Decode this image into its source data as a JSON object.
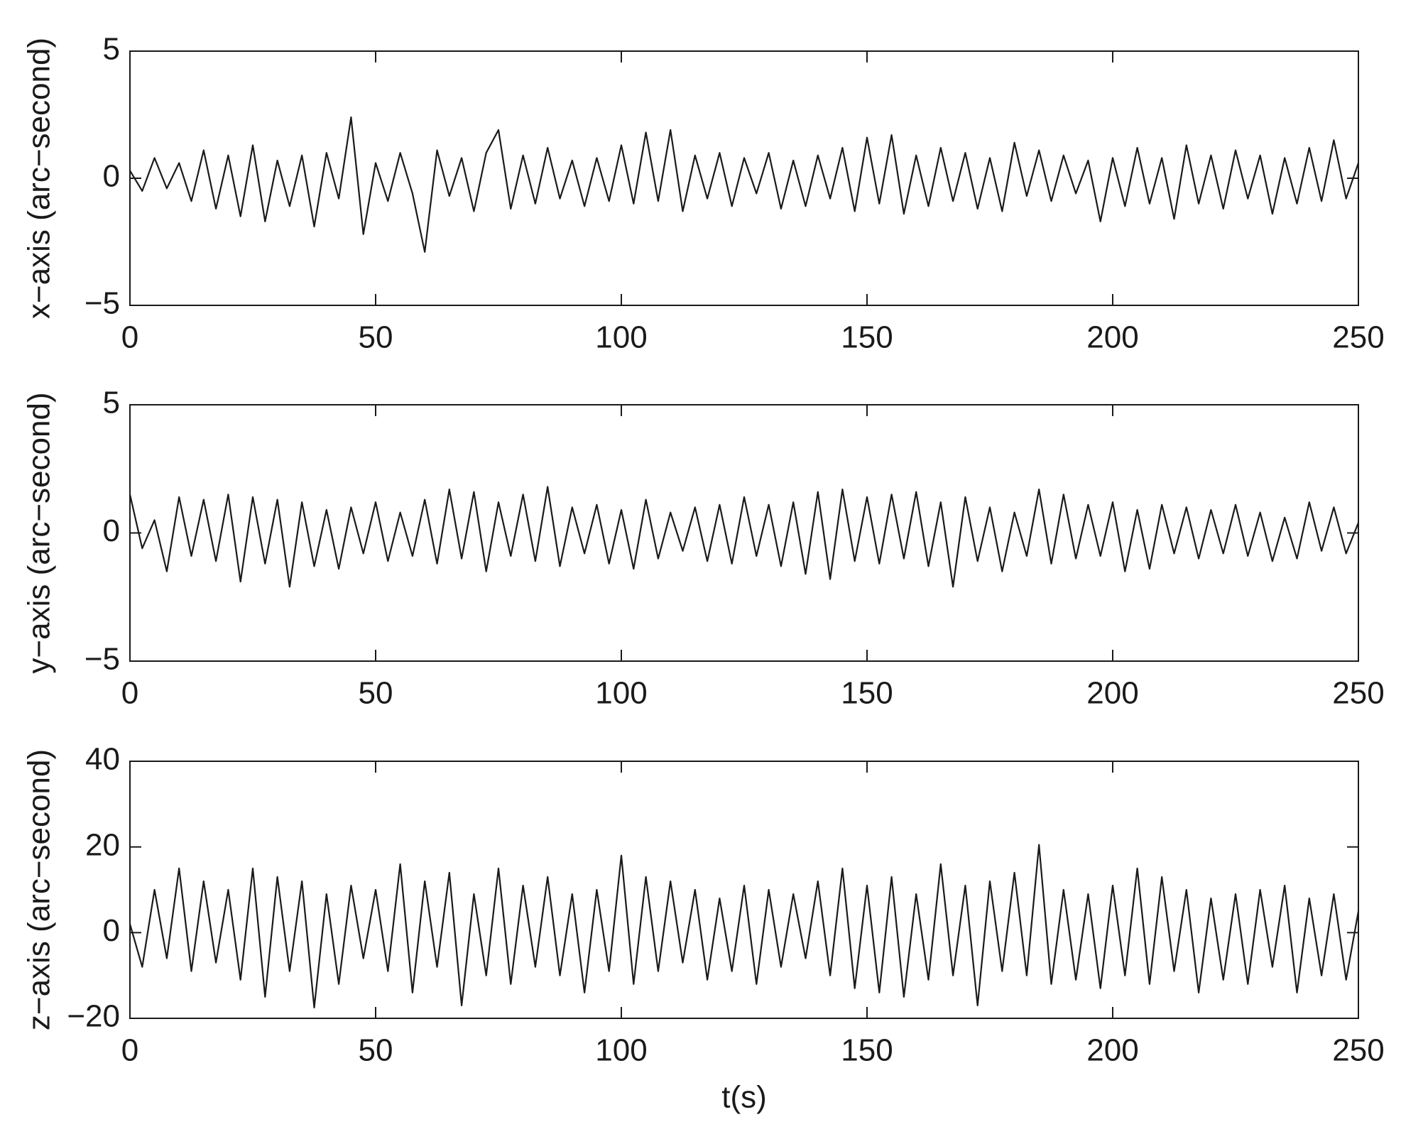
{
  "chart_data": [
    {
      "type": "line",
      "ylabel": "x−axis (arc−second)",
      "x": [
        0,
        2.5,
        5,
        7.5,
        10,
        12.5,
        15,
        17.5,
        20,
        22.5,
        25,
        27.5,
        30,
        32.5,
        35,
        37.5,
        40,
        42.5,
        45,
        47.5,
        50,
        52.5,
        55,
        57.5,
        60,
        62.5,
        65,
        67.5,
        70,
        72.5,
        75,
        77.5,
        80,
        82.5,
        85,
        87.5,
        90,
        92.5,
        95,
        97.5,
        100,
        102.5,
        105,
        107.5,
        110,
        112.5,
        115,
        117.5,
        120,
        122.5,
        125,
        127.5,
        130,
        132.5,
        135,
        137.5,
        140,
        142.5,
        145,
        147.5,
        150,
        152.5,
        155,
        157.5,
        160,
        162.5,
        165,
        167.5,
        170,
        172.5,
        175,
        177.5,
        180,
        182.5,
        185,
        187.5,
        190,
        192.5,
        195,
        197.5,
        200,
        202.5,
        205,
        207.5,
        210,
        212.5,
        215,
        217.5,
        220,
        222.5,
        225,
        227.5,
        230,
        232.5,
        235,
        237.5,
        240,
        242.5,
        245,
        247.5,
        250
      ],
      "series": [
        {
          "color": "#1a1a1a",
          "values": [
            0.3,
            -0.5,
            0.8,
            -0.4,
            0.6,
            -0.9,
            1.1,
            -1.2,
            0.9,
            -1.5,
            1.3,
            -1.7,
            0.7,
            -1.1,
            0.9,
            -1.9,
            1.0,
            -0.8,
            2.4,
            -2.2,
            0.6,
            -0.9,
            1.0,
            -0.6,
            -2.9,
            1.1,
            -0.7,
            0.8,
            -1.3,
            1.0,
            1.9,
            -1.2,
            0.9,
            -1.0,
            1.2,
            -0.8,
            0.7,
            -1.1,
            0.8,
            -0.9,
            1.3,
            -1.0,
            1.8,
            -0.9,
            1.9,
            -1.3,
            0.9,
            -0.8,
            1.0,
            -1.1,
            0.8,
            -0.6,
            1.0,
            -1.2,
            0.7,
            -1.1,
            0.9,
            -0.8,
            1.2,
            -1.3,
            1.6,
            -1.0,
            1.7,
            -1.4,
            0.9,
            -1.1,
            1.2,
            -0.9,
            1.0,
            -1.2,
            0.8,
            -1.3,
            1.4,
            -0.7,
            1.1,
            -0.9,
            0.9,
            -0.6,
            0.7,
            -1.7,
            0.8,
            -1.1,
            1.2,
            -1.0,
            0.8,
            -1.6,
            1.3,
            -1.0,
            0.9,
            -1.2,
            1.1,
            -0.8,
            0.9,
            -1.4,
            0.8,
            -1.0,
            1.2,
            -0.9,
            1.5,
            -0.8,
            0.6
          ]
        }
      ],
      "xlim": [
        0,
        250
      ],
      "xticks": [
        0,
        50,
        100,
        150,
        200,
        250
      ],
      "ylim": [
        -5,
        5
      ],
      "yticks": [
        {
          "value": -5,
          "label": "−5"
        },
        0,
        5
      ]
    },
    {
      "type": "line",
      "ylabel": "y−axis (arc−second)",
      "x": [
        0,
        2.5,
        5,
        7.5,
        10,
        12.5,
        15,
        17.5,
        20,
        22.5,
        25,
        27.5,
        30,
        32.5,
        35,
        37.5,
        40,
        42.5,
        45,
        47.5,
        50,
        52.5,
        55,
        57.5,
        60,
        62.5,
        65,
        67.5,
        70,
        72.5,
        75,
        77.5,
        80,
        82.5,
        85,
        87.5,
        90,
        92.5,
        95,
        97.5,
        100,
        102.5,
        105,
        107.5,
        110,
        112.5,
        115,
        117.5,
        120,
        122.5,
        125,
        127.5,
        130,
        132.5,
        135,
        137.5,
        140,
        142.5,
        145,
        147.5,
        150,
        152.5,
        155,
        157.5,
        160,
        162.5,
        165,
        167.5,
        170,
        172.5,
        175,
        177.5,
        180,
        182.5,
        185,
        187.5,
        190,
        192.5,
        195,
        197.5,
        200,
        202.5,
        205,
        207.5,
        210,
        212.5,
        215,
        217.5,
        220,
        222.5,
        225,
        227.5,
        230,
        232.5,
        235,
        237.5,
        240,
        242.5,
        245,
        247.5,
        250
      ],
      "series": [
        {
          "color": "#1a1a1a",
          "values": [
            1.5,
            -0.6,
            0.5,
            -1.5,
            1.4,
            -0.9,
            1.3,
            -1.1,
            1.5,
            -1.9,
            1.4,
            -1.2,
            1.3,
            -2.1,
            1.2,
            -1.3,
            0.9,
            -1.4,
            1.0,
            -0.8,
            1.2,
            -1.1,
            0.8,
            -0.9,
            1.3,
            -1.2,
            1.7,
            -1.0,
            1.6,
            -1.5,
            1.2,
            -0.9,
            1.5,
            -1.1,
            1.8,
            -1.3,
            1.0,
            -0.8,
            1.1,
            -1.2,
            0.9,
            -1.4,
            1.3,
            -1.0,
            0.8,
            -0.7,
            1.0,
            -1.1,
            1.1,
            -1.2,
            1.4,
            -0.9,
            1.1,
            -1.3,
            1.2,
            -1.6,
            1.6,
            -1.8,
            1.7,
            -1.1,
            1.4,
            -1.2,
            1.5,
            -1.0,
            1.6,
            -1.3,
            1.2,
            -2.1,
            1.4,
            -1.1,
            1.0,
            -1.5,
            0.8,
            -0.9,
            1.7,
            -1.2,
            1.5,
            -1.0,
            1.1,
            -0.9,
            1.2,
            -1.5,
            0.9,
            -1.4,
            1.1,
            -0.8,
            1.0,
            -1.0,
            0.9,
            -0.8,
            1.1,
            -0.9,
            0.8,
            -1.1,
            0.6,
            -1.0,
            1.2,
            -0.7,
            1.0,
            -0.8,
            0.4
          ]
        }
      ],
      "xlim": [
        0,
        250
      ],
      "xticks": [
        0,
        50,
        100,
        150,
        200,
        250
      ],
      "ylim": [
        -5,
        5
      ],
      "yticks": [
        {
          "value": -5,
          "label": "−5"
        },
        0,
        5
      ]
    },
    {
      "type": "line",
      "ylabel": "z−axis (arc−second)",
      "xlabel": "t(s)",
      "x": [
        0,
        2.5,
        5,
        7.5,
        10,
        12.5,
        15,
        17.5,
        20,
        22.5,
        25,
        27.5,
        30,
        32.5,
        35,
        37.5,
        40,
        42.5,
        45,
        47.5,
        50,
        52.5,
        55,
        57.5,
        60,
        62.5,
        65,
        67.5,
        70,
        72.5,
        75,
        77.5,
        80,
        82.5,
        85,
        87.5,
        90,
        92.5,
        95,
        97.5,
        100,
        102.5,
        105,
        107.5,
        110,
        112.5,
        115,
        117.5,
        120,
        122.5,
        125,
        127.5,
        130,
        132.5,
        135,
        137.5,
        140,
        142.5,
        145,
        147.5,
        150,
        152.5,
        155,
        157.5,
        160,
        162.5,
        165,
        167.5,
        170,
        172.5,
        175,
        177.5,
        180,
        182.5,
        185,
        187.5,
        190,
        192.5,
        195,
        197.5,
        200,
        202.5,
        205,
        207.5,
        210,
        212.5,
        215,
        217.5,
        220,
        222.5,
        225,
        227.5,
        230,
        232.5,
        235,
        237.5,
        240,
        242.5,
        245,
        247.5,
        250
      ],
      "series": [
        {
          "color": "#1a1a1a",
          "values": [
            2,
            -8,
            10,
            -6,
            15,
            -9,
            12,
            -7,
            10,
            -11,
            15,
            -15,
            13,
            -9,
            12,
            -17.5,
            9,
            -12,
            11,
            -6,
            10,
            -9,
            16,
            -14,
            12,
            -8,
            14,
            -17,
            9,
            -10,
            15,
            -12,
            11,
            -8,
            13,
            -10,
            9,
            -14,
            10,
            -9,
            18,
            -12,
            13,
            -9,
            12,
            -7,
            10,
            -11,
            8,
            -9,
            11,
            -12,
            10,
            -8,
            9,
            -6,
            12,
            -10,
            15,
            -13,
            11,
            -14,
            13,
            -15,
            9,
            -11,
            16,
            -10,
            11,
            -17,
            12,
            -9,
            14,
            -10,
            20.5,
            -12,
            10,
            -11,
            9,
            -13,
            11,
            -10,
            15,
            -12,
            13,
            -9,
            10,
            -14,
            8,
            -11,
            9,
            -12,
            10,
            -8,
            11,
            -14,
            8,
            -10,
            9,
            -11,
            5
          ]
        }
      ],
      "xlim": [
        0,
        250
      ],
      "xticks": [
        0,
        50,
        100,
        150,
        200,
        250
      ],
      "ylim": [
        -20,
        40
      ],
      "yticks": [
        {
          "value": -20,
          "label": "−20"
        },
        0,
        20,
        40
      ]
    }
  ]
}
